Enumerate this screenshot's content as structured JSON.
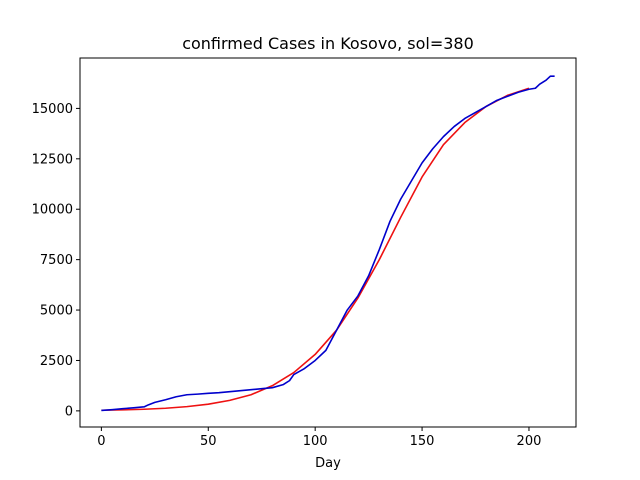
{
  "chart_data": {
    "type": "line",
    "title": "confirmed Cases in Kosovo, sol=380",
    "xlabel": "Day",
    "ylabel": "",
    "xlim": [
      -10,
      222
    ],
    "ylim": [
      -800,
      17500
    ],
    "xticks": [
      0,
      50,
      100,
      150,
      200
    ],
    "yticks": [
      0,
      2500,
      5000,
      7500,
      10000,
      12500,
      15000
    ],
    "grid": false,
    "legend": "none",
    "series": [
      {
        "color": "#ee1111",
        "x": [
          0,
          10,
          20,
          30,
          40,
          50,
          60,
          70,
          80,
          90,
          100,
          110,
          120,
          130,
          140,
          150,
          160,
          170,
          180,
          190,
          200
        ],
        "y": [
          30,
          50,
          80,
          130,
          210,
          330,
          520,
          800,
          1250,
          1900,
          2800,
          4000,
          5600,
          7500,
          9600,
          11600,
          13200,
          14300,
          15100,
          15650,
          16000
        ]
      },
      {
        "color": "#0000cc",
        "x": [
          0,
          5,
          10,
          15,
          20,
          22,
          25,
          30,
          35,
          40,
          45,
          50,
          55,
          60,
          65,
          70,
          75,
          80,
          85,
          88,
          90,
          95,
          100,
          105,
          110,
          115,
          120,
          125,
          130,
          135,
          140,
          145,
          150,
          155,
          160,
          165,
          170,
          175,
          180,
          185,
          190,
          195,
          200,
          203,
          205,
          208,
          210,
          212
        ],
        "y": [
          20,
          60,
          110,
          150,
          200,
          300,
          420,
          550,
          700,
          800,
          830,
          870,
          900,
          950,
          1000,
          1050,
          1100,
          1150,
          1300,
          1500,
          1800,
          2100,
          2500,
          3000,
          4000,
          5000,
          5700,
          6700,
          8000,
          9400,
          10500,
          11400,
          12300,
          13000,
          13600,
          14100,
          14500,
          14800,
          15100,
          15400,
          15600,
          15800,
          15950,
          16000,
          16200,
          16400,
          16600,
          16600
        ]
      }
    ]
  }
}
